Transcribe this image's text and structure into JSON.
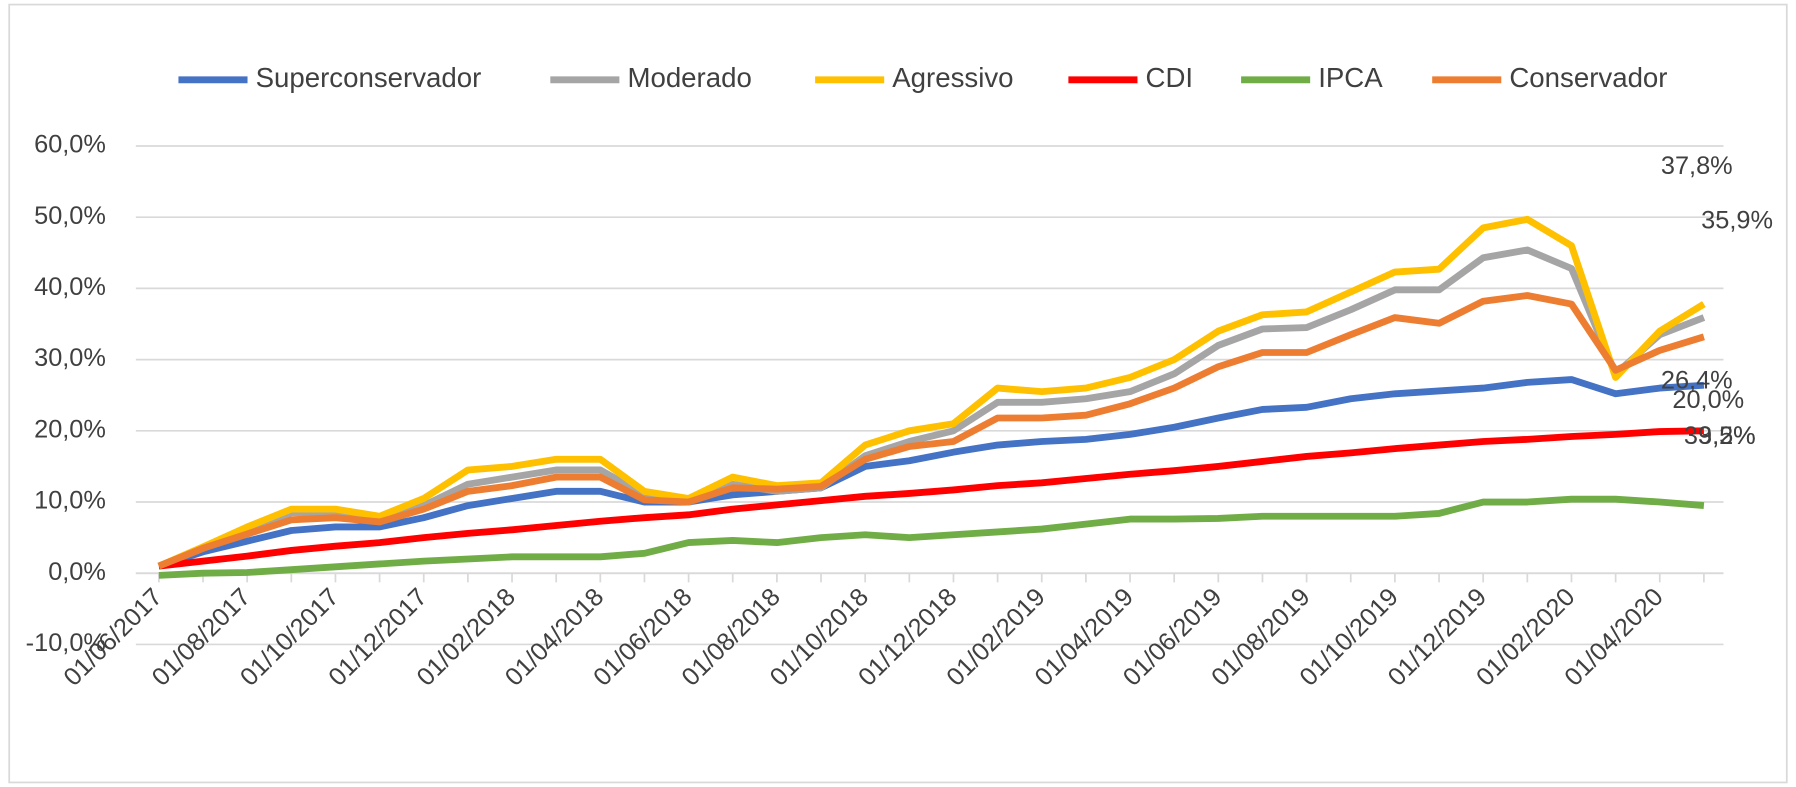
{
  "chart_data": {
    "type": "line",
    "categories": [
      "01/06/2017",
      null,
      "01/08/2017",
      null,
      "01/10/2017",
      null,
      "01/12/2017",
      null,
      "01/02/2018",
      null,
      "01/04/2018",
      null,
      "01/06/2018",
      null,
      "01/08/2018",
      null,
      "01/10/2018",
      null,
      "01/12/2018",
      null,
      "01/02/2019",
      null,
      "01/04/2019",
      null,
      "01/06/2019",
      null,
      "01/08/2019",
      null,
      "01/10/2019",
      null,
      "01/12/2019",
      null,
      "01/02/2020",
      null,
      "01/04/2020",
      null
    ],
    "series": [
      {
        "name": "Superconservador",
        "color": "#4472c4",
        "values": [
          1,
          3,
          4.5,
          6,
          6.5,
          6.5,
          7.8,
          9.5,
          10.5,
          11.5,
          11.5,
          10,
          10,
          11,
          11.5,
          12,
          15,
          15.8,
          17,
          18,
          18.5,
          18.8,
          19.5,
          20.5,
          21.8,
          23,
          23.3,
          24.5,
          25.2,
          25.6,
          26,
          26.8,
          27.2,
          25.2,
          26,
          26.4
        ],
        "value_labels": [
          null,
          null,
          null,
          null,
          null,
          null,
          null,
          null,
          null,
          null,
          null,
          null,
          null,
          null,
          null,
          null,
          null,
          null,
          null,
          null,
          null,
          null,
          null,
          null,
          null,
          null,
          null,
          null,
          null,
          null,
          null,
          null,
          null,
          null,
          null,
          "26,4%"
        ]
      },
      {
        "name": "Moderado",
        "color": "#a5a5a5",
        "values": [
          1,
          3.5,
          6,
          8.5,
          8.5,
          7.5,
          9.5,
          12.5,
          13.5,
          14.5,
          14.5,
          11,
          10,
          12.5,
          11.5,
          12,
          16.5,
          18.5,
          20,
          24,
          24,
          24.5,
          25.5,
          28,
          32,
          34.3,
          34.5,
          37,
          39.8,
          39.8,
          44.3,
          45.4,
          42.8,
          28,
          33.5,
          35.9
        ],
        "value_labels": [
          null,
          null,
          null,
          null,
          null,
          null,
          null,
          null,
          null,
          null,
          null,
          null,
          null,
          null,
          null,
          null,
          null,
          null,
          null,
          null,
          null,
          null,
          null,
          null,
          null,
          null,
          null,
          null,
          null,
          null,
          null,
          null,
          null,
          null,
          null,
          "35,9%"
        ]
      },
      {
        "name": "Agressivo",
        "color": "#ffc000",
        "values": [
          1,
          3.7,
          6.5,
          9,
          9,
          8,
          10.5,
          14.5,
          15,
          16,
          16,
          11.5,
          10.5,
          13.5,
          12.3,
          12.7,
          18,
          20,
          21,
          26,
          25.5,
          26,
          27.5,
          30,
          34,
          36.3,
          36.7,
          39.5,
          42.3,
          42.7,
          48.5,
          49.7,
          46,
          27.5,
          34,
          37.8
        ],
        "value_labels": [
          null,
          null,
          null,
          null,
          null,
          null,
          null,
          null,
          null,
          null,
          null,
          null,
          null,
          null,
          null,
          null,
          null,
          null,
          null,
          null,
          null,
          null,
          null,
          null,
          null,
          null,
          null,
          null,
          null,
          null,
          null,
          null,
          null,
          null,
          null,
          "37,8%"
        ]
      },
      {
        "name": "CDI",
        "color": "#ff0000",
        "values": [
          1,
          1.7,
          2.4,
          3.2,
          3.8,
          4.3,
          5,
          5.6,
          6.1,
          6.7,
          7.3,
          7.8,
          8.2,
          9,
          9.6,
          10.2,
          10.8,
          11.2,
          11.7,
          12.3,
          12.7,
          13.3,
          13.9,
          14.4,
          15,
          15.7,
          16.4,
          16.9,
          17.5,
          18,
          18.5,
          18.8,
          19.2,
          19.5,
          19.9,
          20.0
        ],
        "value_labels": [
          null,
          null,
          null,
          null,
          null,
          null,
          null,
          null,
          null,
          null,
          null,
          null,
          null,
          null,
          null,
          null,
          null,
          null,
          null,
          null,
          null,
          null,
          null,
          null,
          null,
          null,
          null,
          null,
          null,
          null,
          null,
          null,
          null,
          null,
          null,
          "20,0%"
        ]
      },
      {
        "name": "IPCA",
        "color": "#70ad47",
        "values": [
          -0.3,
          0,
          0.1,
          0.5,
          0.9,
          1.3,
          1.7,
          2,
          2.3,
          2.3,
          2.3,
          2.8,
          4.3,
          4.6,
          4.3,
          5,
          5.4,
          5,
          5.4,
          5.8,
          6.2,
          6.9,
          7.6,
          7.6,
          7.7,
          8,
          8,
          8,
          8,
          8.4,
          10,
          10,
          10.4,
          10.4,
          10,
          9.5
        ],
        "value_labels": [
          null,
          null,
          null,
          null,
          null,
          null,
          null,
          null,
          null,
          null,
          null,
          null,
          null,
          null,
          null,
          null,
          null,
          null,
          null,
          null,
          null,
          null,
          null,
          null,
          null,
          null,
          null,
          null,
          null,
          null,
          null,
          null,
          null,
          null,
          null,
          "9,5%"
        ]
      },
      {
        "name": "Conservador",
        "color": "#ed7d31",
        "values": [
          1,
          3.5,
          5.5,
          7.5,
          7.8,
          7.2,
          9,
          11.5,
          12.3,
          13.5,
          13.5,
          10.3,
          10,
          12,
          11.8,
          12.2,
          16,
          17.8,
          18.5,
          21.8,
          21.8,
          22.2,
          23.8,
          26,
          29,
          31,
          31,
          33.5,
          35.9,
          35.1,
          38.2,
          39,
          37.8,
          28.5,
          31.3,
          33.2
        ],
        "value_labels": [
          null,
          null,
          null,
          null,
          null,
          null,
          null,
          null,
          null,
          null,
          null,
          null,
          null,
          null,
          null,
          null,
          null,
          null,
          null,
          null,
          null,
          null,
          null,
          null,
          null,
          null,
          null,
          null,
          null,
          null,
          null,
          null,
          null,
          null,
          null,
          "33,2%"
        ]
      }
    ],
    "ylim": [
      -10,
      60
    ],
    "yticks": [
      {
        "value": -10,
        "label": "-10,0%"
      },
      {
        "value": 0,
        "label": "0,0%"
      },
      {
        "value": 10,
        "label": "10,0%"
      },
      {
        "value": 20,
        "label": "20,0%"
      },
      {
        "value": 30,
        "label": "30,0%"
      },
      {
        "value": 40,
        "label": "40,0%"
      },
      {
        "value": 50,
        "label": "50,0%"
      },
      {
        "value": 60,
        "label": "60,0%"
      }
    ],
    "grid": true,
    "legend": "top"
  }
}
